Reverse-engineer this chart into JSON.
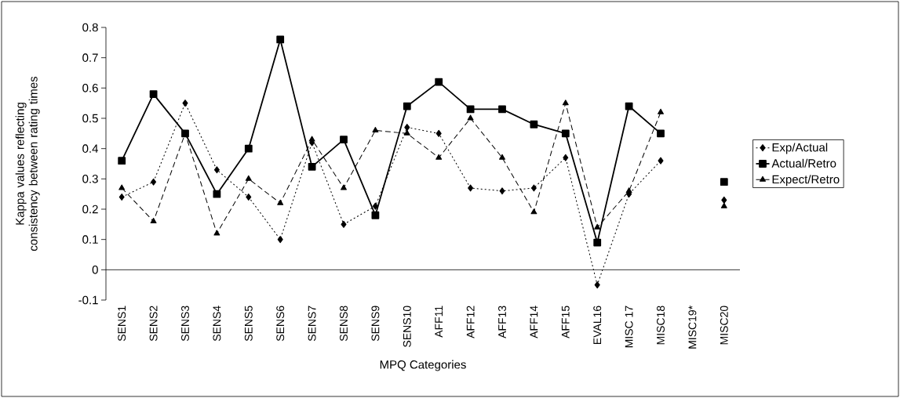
{
  "chart_data": {
    "type": "line",
    "xlabel": "MPQ Categories",
    "ylabel": "Kappa values reflecting consistency between rating times",
    "categories": [
      "SENS1",
      "SENS2",
      "SENS3",
      "SENS4",
      "SENS5",
      "SENS6",
      "SENS7",
      "SENS8",
      "SENS9",
      "SENS10",
      "AFF11",
      "AFF12",
      "AFF13",
      "AFF14",
      "AFF15",
      "EVAL16",
      "MISC 17",
      "MISC18",
      "MISC19*",
      "MISC20"
    ],
    "series": [
      {
        "name": "Exp/Actual",
        "color": "#000000",
        "marker": "diamond",
        "line_style": "dotted",
        "values": [
          0.24,
          0.29,
          0.55,
          0.33,
          0.24,
          0.1,
          0.42,
          0.15,
          0.21,
          0.47,
          0.45,
          0.27,
          0.26,
          0.27,
          0.37,
          -0.05,
          0.25,
          0.36,
          null,
          0.23
        ]
      },
      {
        "name": "Actual/Retro",
        "color": "#000000",
        "marker": "square",
        "line_style": "solid",
        "values": [
          0.36,
          0.58,
          0.45,
          0.25,
          0.4,
          0.76,
          0.34,
          0.43,
          0.18,
          0.54,
          0.62,
          0.53,
          0.53,
          0.48,
          0.45,
          0.09,
          0.54,
          0.45,
          null,
          0.29
        ]
      },
      {
        "name": "Expect/Retro",
        "color": "#000000",
        "marker": "triangle",
        "line_style": "dashed",
        "values": [
          0.27,
          0.16,
          0.45,
          0.12,
          0.3,
          0.22,
          0.43,
          0.27,
          0.46,
          0.45,
          0.37,
          0.5,
          0.37,
          0.19,
          0.55,
          0.14,
          0.26,
          0.52,
          null,
          0.21
        ]
      }
    ],
    "ylim": [
      -0.1,
      0.8
    ],
    "yticks": [
      -0.1,
      0,
      0.1,
      0.2,
      0.3,
      0.4,
      0.5,
      0.6,
      0.7,
      0.8
    ],
    "legend": "right"
  }
}
